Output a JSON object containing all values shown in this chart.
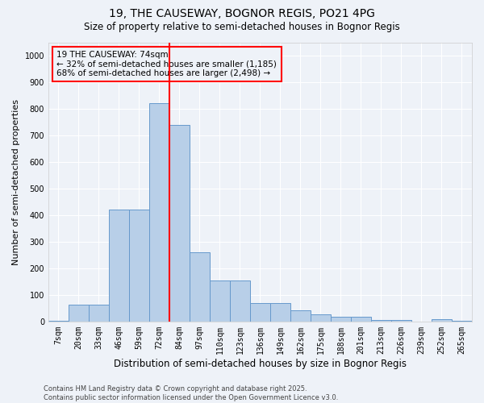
{
  "title": "19, THE CAUSEWAY, BOGNOR REGIS, PO21 4PG",
  "subtitle": "Size of property relative to semi-detached houses in Bognor Regis",
  "xlabel": "Distribution of semi-detached houses by size in Bognor Regis",
  "ylabel": "Number of semi-detached properties",
  "categories": [
    "7sqm",
    "20sqm",
    "33sqm",
    "46sqm",
    "59sqm",
    "72sqm",
    "84sqm",
    "97sqm",
    "110sqm",
    "123sqm",
    "136sqm",
    "149sqm",
    "162sqm",
    "175sqm",
    "188sqm",
    "201sqm",
    "213sqm",
    "226sqm",
    "239sqm",
    "252sqm",
    "265sqm"
  ],
  "values": [
    2,
    62,
    62,
    420,
    420,
    820,
    740,
    260,
    155,
    155,
    68,
    68,
    42,
    28,
    18,
    18,
    7,
    7,
    0,
    8,
    2
  ],
  "bar_color": "#b8cfe8",
  "bar_edge_color": "#6699cc",
  "red_line_x": 5.5,
  "annotation_title": "19 THE CAUSEWAY: 74sqm",
  "annotation_line1": "← 32% of semi-detached houses are smaller (1,185)",
  "annotation_line2": "68% of semi-detached houses are larger (2,498) →",
  "ylim": [
    0,
    1050
  ],
  "yticks": [
    0,
    100,
    200,
    300,
    400,
    500,
    600,
    700,
    800,
    900,
    1000
  ],
  "footer_line1": "Contains HM Land Registry data © Crown copyright and database right 2025.",
  "footer_line2": "Contains public sector information licensed under the Open Government Licence v3.0.",
  "bg_color": "#eef2f8",
  "grid_color": "#ffffff",
  "title_fontsize": 10,
  "subtitle_fontsize": 8.5,
  "tick_fontsize": 7,
  "ylabel_fontsize": 8,
  "xlabel_fontsize": 8.5,
  "footer_fontsize": 6,
  "annotation_fontsize": 7.5
}
